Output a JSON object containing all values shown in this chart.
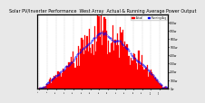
{
  "title": "Solar PV/Inverter Performance  West Array  Actual & Running Average Power Output",
  "title_fontsize": 3.5,
  "bg_color": "#e8e8e8",
  "plot_bg_color": "#ffffff",
  "bar_color": "#ff0000",
  "bar_edge_color": "#cc0000",
  "dot_color": "#0000ff",
  "grid_color": "#aaaaaa",
  "ylabel_right": [
    "800w",
    "700w",
    "600w",
    "500w",
    "400w",
    "300w",
    "200w",
    "100w",
    "0w"
  ],
  "ylabel_right_vals": [
    800,
    700,
    600,
    500,
    400,
    300,
    200,
    100,
    0
  ],
  "ymax": 900,
  "num_bars": 120,
  "legend_actual_color": "#ff0000",
  "legend_avg_color": "#0000ff",
  "legend_actual_label": "Actual",
  "legend_avg_label": "Running Avg"
}
